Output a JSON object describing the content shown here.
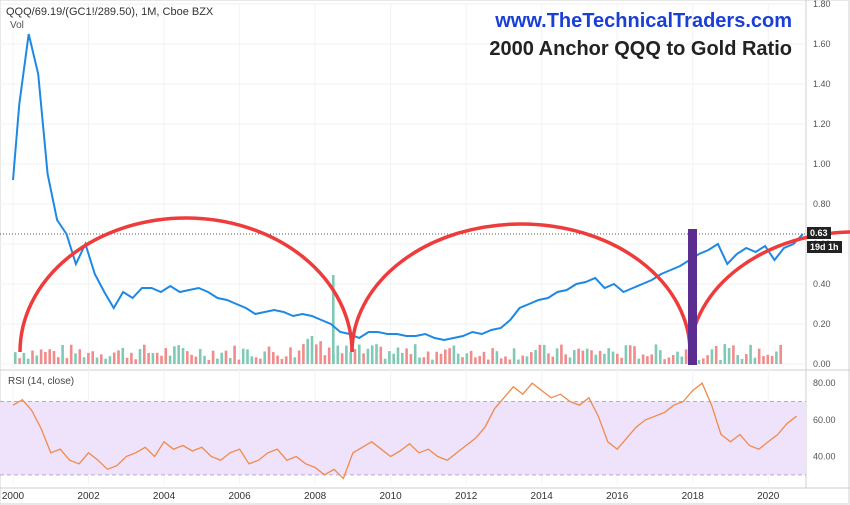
{
  "header": {
    "symbol": "QQQ/69.19/(GC1!/289.50), 1M, Cboe BZX",
    "volume_label": "Vol",
    "brand": "www.TheTechnicalTraders.com",
    "title": "2000 Anchor QQQ to Gold Ratio",
    "last_value_label": "0.63",
    "countdown_label": "19d 1h"
  },
  "rsi_panel": {
    "label": "RSI (14, close)"
  },
  "colors": {
    "price_line": "#1e88e5",
    "arcs": "#ee3b3b",
    "purple_bar": "#5c2d91",
    "rsi_line": "#f08a4b",
    "rsi_band": "#efe2fb",
    "vol_up": "#7fc9b6",
    "vol_down": "#f08c8c",
    "brand": "#1a3fd6"
  },
  "chart_data": [
    {
      "type": "line",
      "name": "QQQ to Gold Ratio",
      "x": [
        "2000-01",
        "2000-03",
        "2000-06",
        "2000-09",
        "2000-12",
        "2001-03",
        "2001-06",
        "2001-09",
        "2001-12",
        "2002-03",
        "2002-06",
        "2002-09",
        "2002-12",
        "2003-03",
        "2003-06",
        "2003-09",
        "2003-12",
        "2004-03",
        "2004-06",
        "2004-09",
        "2004-12",
        "2005-03",
        "2005-06",
        "2005-09",
        "2005-12",
        "2006-03",
        "2006-06",
        "2006-09",
        "2006-12",
        "2007-03",
        "2007-06",
        "2007-09",
        "2007-12",
        "2008-03",
        "2008-06",
        "2008-09",
        "2008-12",
        "2009-03",
        "2009-06",
        "2009-09",
        "2009-12",
        "2010-03",
        "2010-06",
        "2010-09",
        "2010-12",
        "2011-03",
        "2011-06",
        "2011-09",
        "2011-12",
        "2012-03",
        "2012-06",
        "2012-09",
        "2012-12",
        "2013-03",
        "2013-06",
        "2013-09",
        "2013-12",
        "2014-03",
        "2014-06",
        "2014-09",
        "2014-12",
        "2015-03",
        "2015-06",
        "2015-09",
        "2015-12",
        "2016-03",
        "2016-06",
        "2016-09",
        "2016-12",
        "2017-03",
        "2017-06",
        "2017-09",
        "2017-12",
        "2018-03",
        "2018-06",
        "2018-09",
        "2018-12",
        "2019-03",
        "2019-06",
        "2019-09",
        "2019-12",
        "2020-03",
        "2020-06",
        "2020-09",
        "2020-12"
      ],
      "y": [
        0.92,
        1.3,
        1.65,
        1.45,
        0.95,
        0.72,
        0.65,
        0.5,
        0.6,
        0.45,
        0.36,
        0.28,
        0.36,
        0.33,
        0.38,
        0.38,
        0.36,
        0.39,
        0.36,
        0.37,
        0.38,
        0.36,
        0.33,
        0.32,
        0.3,
        0.28,
        0.25,
        0.26,
        0.27,
        0.26,
        0.24,
        0.25,
        0.24,
        0.22,
        0.2,
        0.16,
        0.15,
        0.13,
        0.16,
        0.16,
        0.15,
        0.15,
        0.14,
        0.14,
        0.15,
        0.13,
        0.12,
        0.13,
        0.14,
        0.16,
        0.15,
        0.17,
        0.18,
        0.22,
        0.28,
        0.3,
        0.32,
        0.33,
        0.36,
        0.37,
        0.4,
        0.41,
        0.43,
        0.38,
        0.4,
        0.36,
        0.38,
        0.4,
        0.42,
        0.45,
        0.47,
        0.49,
        0.52,
        0.55,
        0.57,
        0.6,
        0.5,
        0.55,
        0.58,
        0.56,
        0.59,
        0.52,
        0.58,
        0.6,
        0.65
      ],
      "ylim": [
        0.0,
        1.8
      ],
      "y_ticks": [
        "0.00",
        "0.20",
        "0.40",
        "0.60",
        "0.80",
        "1.00",
        "1.20",
        "1.40",
        "1.60",
        "1.80"
      ],
      "x_ticks": [
        "2000",
        "2002",
        "2004",
        "2006",
        "2008",
        "2010",
        "2012",
        "2014",
        "2016",
        "2018",
        "2020"
      ],
      "grid": true
    },
    {
      "type": "line",
      "name": "RSI (14, close)",
      "x": [
        "2000-01",
        "2000-04",
        "2000-07",
        "2000-10",
        "2001-01",
        "2001-04",
        "2001-07",
        "2001-10",
        "2002-01",
        "2002-04",
        "2002-07",
        "2002-10",
        "2003-01",
        "2003-04",
        "2003-07",
        "2003-10",
        "2004-01",
        "2004-04",
        "2004-07",
        "2004-10",
        "2005-01",
        "2005-04",
        "2005-07",
        "2005-10",
        "2006-01",
        "2006-04",
        "2006-07",
        "2006-10",
        "2007-01",
        "2007-04",
        "2007-07",
        "2007-10",
        "2008-01",
        "2008-04",
        "2008-07",
        "2008-10",
        "2009-01",
        "2009-04",
        "2009-07",
        "2009-10",
        "2010-01",
        "2010-04",
        "2010-07",
        "2010-10",
        "2011-01",
        "2011-04",
        "2011-07",
        "2011-10",
        "2012-01",
        "2012-04",
        "2012-07",
        "2012-10",
        "2013-01",
        "2013-04",
        "2013-07",
        "2013-10",
        "2014-01",
        "2014-04",
        "2014-07",
        "2014-10",
        "2015-01",
        "2015-04",
        "2015-07",
        "2015-10",
        "2016-01",
        "2016-04",
        "2016-07",
        "2016-10",
        "2017-01",
        "2017-04",
        "2017-07",
        "2017-10",
        "2018-01",
        "2018-04",
        "2018-07",
        "2018-10",
        "2019-01",
        "2019-04",
        "2019-07",
        "2019-10",
        "2020-01",
        "2020-04",
        "2020-07",
        "2020-10"
      ],
      "y": [
        68,
        71,
        65,
        55,
        42,
        44,
        38,
        36,
        42,
        38,
        33,
        35,
        40,
        42,
        45,
        40,
        48,
        44,
        46,
        43,
        45,
        40,
        38,
        42,
        44,
        36,
        38,
        42,
        44,
        38,
        40,
        36,
        34,
        30,
        33,
        28,
        42,
        45,
        48,
        44,
        40,
        43,
        47,
        42,
        44,
        40,
        38,
        42,
        46,
        50,
        56,
        66,
        72,
        78,
        74,
        80,
        76,
        72,
        74,
        70,
        68,
        72,
        62,
        48,
        44,
        50,
        56,
        60,
        62,
        64,
        68,
        70,
        76,
        80,
        68,
        52,
        48,
        52,
        46,
        44,
        48,
        52,
        58,
        62
      ],
      "ylim": [
        25,
        85
      ],
      "y_ticks": [
        "40.00",
        "60.00",
        "80.00"
      ],
      "band": [
        30,
        70
      ]
    }
  ]
}
